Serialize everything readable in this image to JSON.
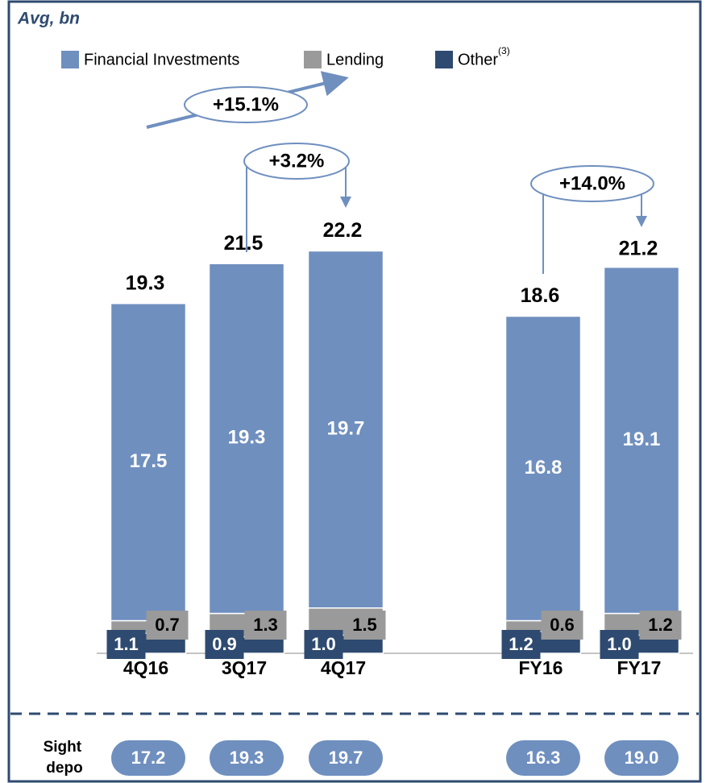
{
  "chart_data": {
    "type": "stacked_bar",
    "title": "Avg, bn",
    "categories": [
      "4Q16",
      "3Q17",
      "4Q17",
      "FY16",
      "FY17"
    ],
    "series": [
      {
        "name": "Other",
        "footnote": "(3)",
        "color": "#2e4a70",
        "values": [
          1.1,
          0.9,
          1.0,
          1.2,
          1.0
        ],
        "value_labels": [
          "1.1",
          "0.9",
          "1.0",
          "1.2",
          "1.0"
        ]
      },
      {
        "name": "Lending",
        "color": "#9a9a9a",
        "values": [
          0.7,
          1.3,
          1.5,
          0.6,
          1.2
        ]
      },
      {
        "name": "Financial Investments",
        "color": "#6f8fbf",
        "values": [
          17.5,
          19.3,
          19.7,
          16.8,
          19.1
        ]
      }
    ],
    "totals": [
      19.3,
      21.5,
      22.2,
      18.6,
      21.2
    ],
    "ylim": [
      0,
      24
    ],
    "annotations": [
      {
        "text": "+15.1%"
      },
      {
        "text": "+3.2%"
      },
      {
        "text": "+14.0%"
      }
    ],
    "sight_deposits": {
      "label": "Sight depo",
      "values": [
        17.2,
        19.3,
        19.7,
        16.3,
        19.0
      ],
      "value_labels": [
        "17.2",
        "19.3",
        "19.7",
        "16.3",
        "19.0"
      ]
    }
  }
}
